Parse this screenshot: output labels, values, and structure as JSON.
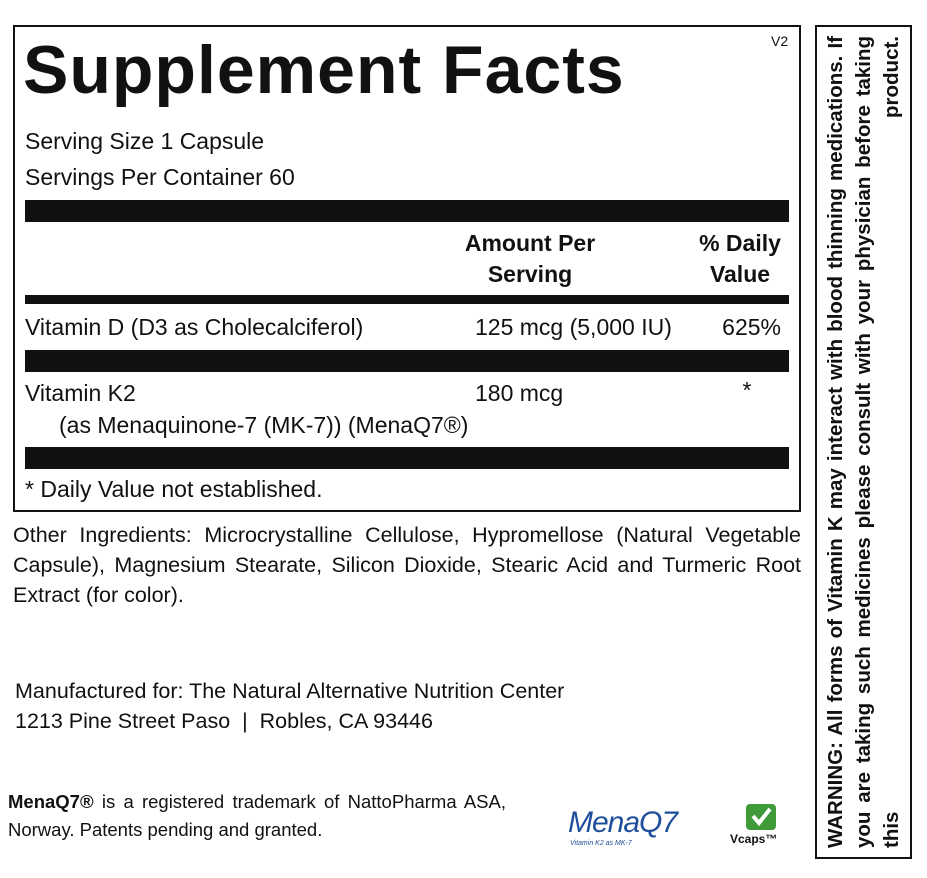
{
  "panel": {
    "title": "Supplement Facts",
    "version": "V2",
    "serving_size": "Serving Size 1 Capsule",
    "servings_per_container": "Servings Per Container 60",
    "header": {
      "amount": [
        "Amount Per",
        "Serving"
      ],
      "daily_value": [
        "% Daily",
        "Value"
      ]
    },
    "rows": [
      {
        "name": "Vitamin D (D3 as Cholecalciferol)",
        "amount": "125 mcg (5,000 IU)",
        "daily_value": "625%"
      },
      {
        "name": "Vitamin K2",
        "detail": "(as Menaquinone-7 (MK-7)) (MenaQ7®)",
        "amount": "180 mcg",
        "daily_value": "*"
      }
    ],
    "footnote": "* Daily Value not established."
  },
  "other_ingredients": "Other Ingredients: Microcrystalline Cellulose, Hypromellose (Natural Vegetable Capsule), Magnesium Stearate, Silicon Dioxide, Stearic Acid and Turmeric Root Extract (for color).",
  "manufacturer": [
    "Manufactured for: The Natural Alternative Nutrition Center",
    "1213 Pine Street Paso  |  Robles, CA 93446"
  ],
  "trademark": {
    "brand": "MenaQ7®",
    "text": "is a registered trademark of NattoPharma ASA, Norway. Patents pending and granted."
  },
  "logos": {
    "menaq7": "MenaQ7",
    "menaq7_tagline": "Vitamin K2 as MK-7",
    "vcaps": "Vcaps™"
  },
  "warning": "WARNING: All forms of Vitamin K may interact with blood thinning medications. If you are taking such medicines please consult with your physician before taking this product."
}
